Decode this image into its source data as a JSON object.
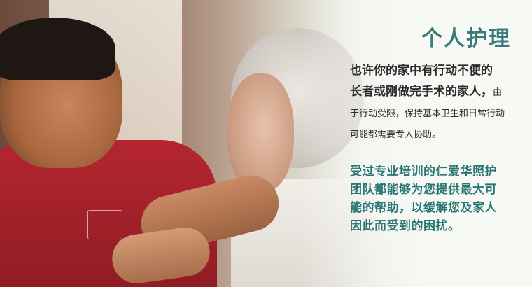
{
  "banner": {
    "title": "个人护理",
    "paragraph1": {
      "line1": "也许你的家中有行动不便的",
      "line2_big": "长者或刚做完手术的家人，",
      "line2_small": "由",
      "line3": "于行动受限，保持基本卫生和日常行动",
      "line4": "可能都需要专人协助。"
    },
    "paragraph2": {
      "line1": "受过专业培训的仁爱华照护",
      "line2": "团队都能够为您提供最大可",
      "line3": "能的帮助，以缓解您及家人",
      "line4": "因此而受到的困扰。"
    },
    "colors": {
      "title": "#3a7a78",
      "body_text": "#2d2d2d",
      "highlight_text": "#2b7773"
    }
  }
}
